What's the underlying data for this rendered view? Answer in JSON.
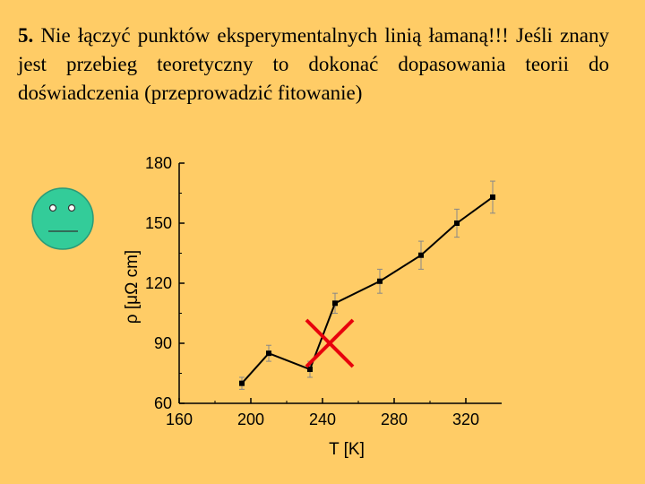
{
  "slide": {
    "item_number": "5.",
    "text": "Nie łączyć punktów eksperymentalnych linią łamaną!!! Jeśli znany jest przebieg teoretyczny to dokonać dopasowania teorii do doświadczenia (przeprowadzić fitowanie)"
  },
  "colors": {
    "background": "#FFCC66",
    "smiley_face": "#33CC99",
    "cross_mark": "#E8000D",
    "series": "#000000"
  },
  "chart_data": {
    "type": "line",
    "title": "",
    "xlabel": "T [K]",
    "ylabel": "ρ [μΩ cm]",
    "xlim": [
      160,
      340
    ],
    "ylim": [
      60,
      180
    ],
    "xticks": [
      160,
      200,
      240,
      280,
      320
    ],
    "yticks": [
      60,
      90,
      120,
      150,
      180
    ],
    "grid": false,
    "legend": "none",
    "series": [
      {
        "x": [
          195,
          210,
          233,
          247,
          272,
          295,
          315,
          335
        ],
        "y": [
          70,
          85,
          77,
          110,
          121,
          134,
          150,
          163
        ],
        "error": [
          3,
          4,
          4,
          5,
          6,
          7,
          7,
          8
        ]
      }
    ],
    "annotations": [
      {
        "type": "cross",
        "x": 244,
        "y": 90
      }
    ]
  }
}
